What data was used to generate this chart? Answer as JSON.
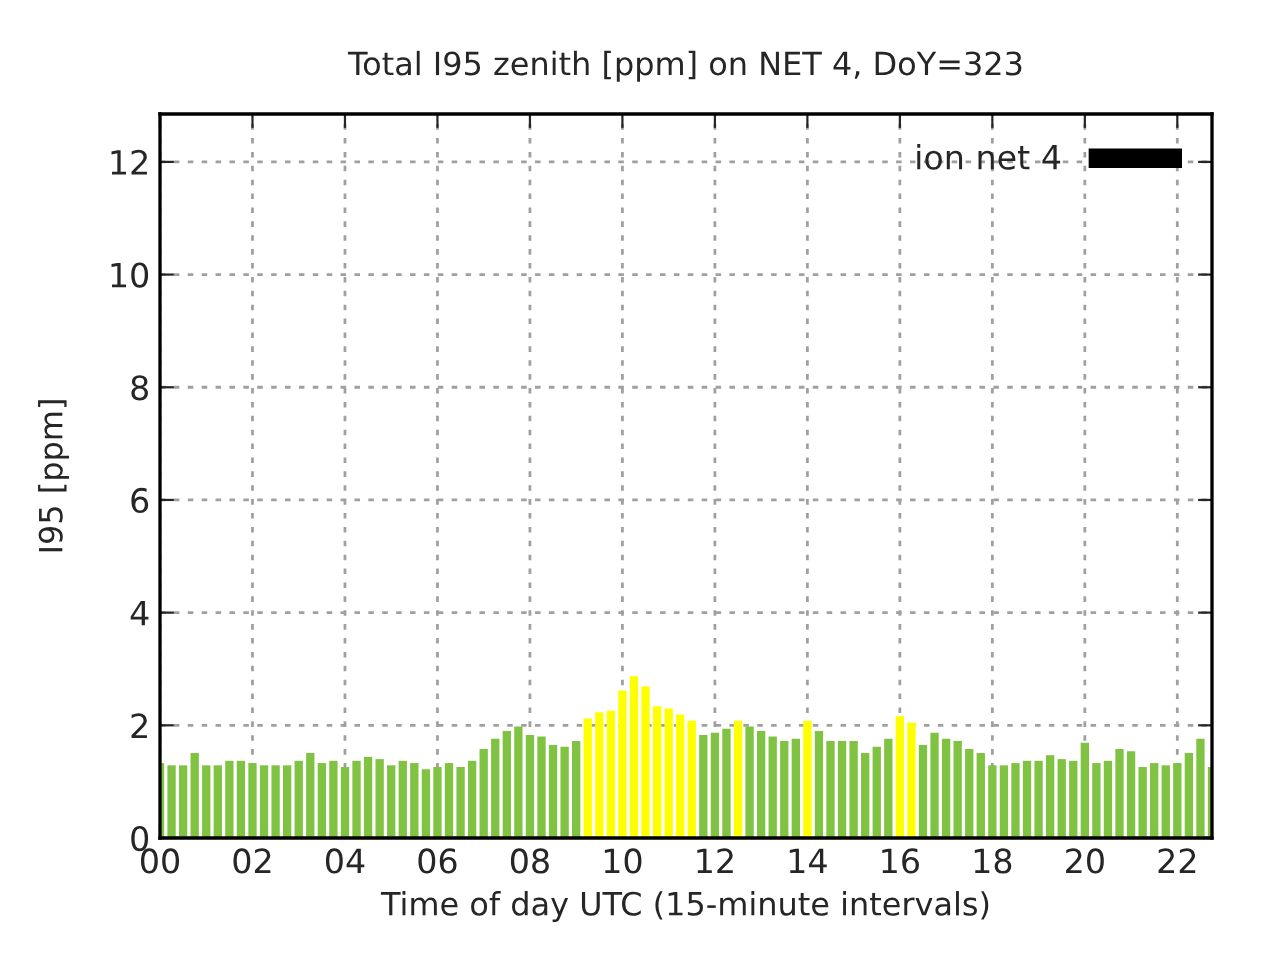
{
  "chart_data": {
    "type": "bar",
    "title": "Total I95 zenith [ppm] on NET 4, DoY=323",
    "xlabel": "Time of day UTC (15-minute intervals)",
    "ylabel": "I95 [ppm]",
    "x": [
      0,
      0.25,
      0.5,
      0.75,
      1,
      1.25,
      1.5,
      1.75,
      2,
      2.25,
      2.5,
      2.75,
      3,
      3.25,
      3.5,
      3.75,
      4,
      4.25,
      4.5,
      4.75,
      5,
      5.25,
      5.5,
      5.75,
      6,
      6.25,
      6.5,
      6.75,
      7,
      7.25,
      7.5,
      7.75,
      8,
      8.25,
      8.5,
      8.75,
      9,
      9.25,
      9.5,
      9.75,
      10,
      10.25,
      10.5,
      10.75,
      11,
      11.25,
      11.5,
      11.75,
      12,
      12.25,
      12.5,
      12.75,
      13,
      13.25,
      13.5,
      13.75,
      14,
      14.25,
      14.5,
      14.75,
      15,
      15.25,
      15.5,
      15.75,
      16,
      16.25,
      16.5,
      16.75,
      17,
      17.25,
      17.5,
      17.75,
      18,
      18.25,
      18.5,
      18.75,
      19,
      19.25,
      19.5,
      19.75,
      20,
      20.25,
      20.5,
      20.75,
      21,
      21.25,
      21.5,
      21.75,
      22,
      22.25,
      22.5,
      22.75
    ],
    "series": [
      {
        "name": "ion net 4",
        "color": "#000000",
        "values": [
          1.33,
          1.29,
          1.29,
          1.51,
          1.29,
          1.29,
          1.37,
          1.37,
          1.33,
          1.29,
          1.29,
          1.29,
          1.37,
          1.51,
          1.33,
          1.37,
          1.26,
          1.37,
          1.44,
          1.4,
          1.29,
          1.37,
          1.33,
          1.22,
          1.26,
          1.33,
          1.26,
          1.37,
          1.58,
          1.76,
          1.9,
          1.98,
          1.83,
          1.8,
          1.65,
          1.62,
          1.72,
          2.12,
          2.23,
          2.26,
          2.62,
          2.87,
          2.69,
          2.34,
          2.3,
          2.19,
          2.08,
          1.83,
          1.87,
          1.94,
          2.08,
          1.98,
          1.9,
          1.8,
          1.72,
          1.76,
          2.08,
          1.9,
          1.72,
          1.72,
          1.72,
          1.51,
          1.62,
          1.76,
          2.16,
          2.05,
          1.65,
          1.87,
          1.76,
          1.72,
          1.58,
          1.51,
          1.29,
          1.29,
          1.33,
          1.37,
          1.37,
          1.47,
          1.4,
          1.37,
          1.69,
          1.33,
          1.37,
          1.58,
          1.54,
          1.26,
          1.33,
          1.29,
          1.33,
          1.51,
          1.76,
          1.26
        ],
        "colors": [
          "#80c241",
          "#80c241",
          "#80c241",
          "#80c241",
          "#80c241",
          "#80c241",
          "#80c241",
          "#80c241",
          "#80c241",
          "#80c241",
          "#80c241",
          "#80c241",
          "#80c241",
          "#80c241",
          "#80c241",
          "#80c241",
          "#80c241",
          "#80c241",
          "#80c241",
          "#80c241",
          "#80c241",
          "#80c241",
          "#80c241",
          "#80c241",
          "#80c241",
          "#80c241",
          "#80c241",
          "#80c241",
          "#80c241",
          "#80c241",
          "#80c241",
          "#80c241",
          "#80c241",
          "#80c241",
          "#80c241",
          "#80c241",
          "#80c241",
          "#ffff00",
          "#ffff00",
          "#ffff00",
          "#ffff00",
          "#ffff00",
          "#ffff00",
          "#ffff00",
          "#ffff00",
          "#ffff00",
          "#ffff00",
          "#80c241",
          "#80c241",
          "#80c241",
          "#ffff00",
          "#80c241",
          "#80c241",
          "#80c241",
          "#80c241",
          "#80c241",
          "#ffff00",
          "#80c241",
          "#80c241",
          "#80c241",
          "#80c241",
          "#80c241",
          "#80c241",
          "#80c241",
          "#ffff00",
          "#ffff00",
          "#80c241",
          "#80c241",
          "#80c241",
          "#80c241",
          "#80c241",
          "#80c241",
          "#80c241",
          "#80c241",
          "#80c241",
          "#80c241",
          "#80c241",
          "#80c241",
          "#80c241",
          "#80c241",
          "#80c241",
          "#80c241",
          "#80c241",
          "#80c241",
          "#80c241",
          "#80c241",
          "#80c241",
          "#80c241",
          "#80c241",
          "#80c241",
          "#80c241",
          "#80c241"
        ]
      }
    ],
    "xlim": [
      0,
      22.75
    ],
    "xticks": [
      {
        "value": 0,
        "label": "00"
      },
      {
        "value": 2,
        "label": "02"
      },
      {
        "value": 4,
        "label": "04"
      },
      {
        "value": 6,
        "label": "06"
      },
      {
        "value": 8,
        "label": "08"
      },
      {
        "value": 10,
        "label": "10"
      },
      {
        "value": 12,
        "label": "12"
      },
      {
        "value": 14,
        "label": "14"
      },
      {
        "value": 16,
        "label": "16"
      },
      {
        "value": 18,
        "label": "18"
      },
      {
        "value": 20,
        "label": "20"
      },
      {
        "value": 22,
        "label": "22"
      }
    ],
    "ylim": [
      0,
      12.85
    ],
    "yticks": [
      0,
      2,
      4,
      6,
      8,
      10,
      12
    ],
    "grid": true,
    "legend": "top right"
  }
}
